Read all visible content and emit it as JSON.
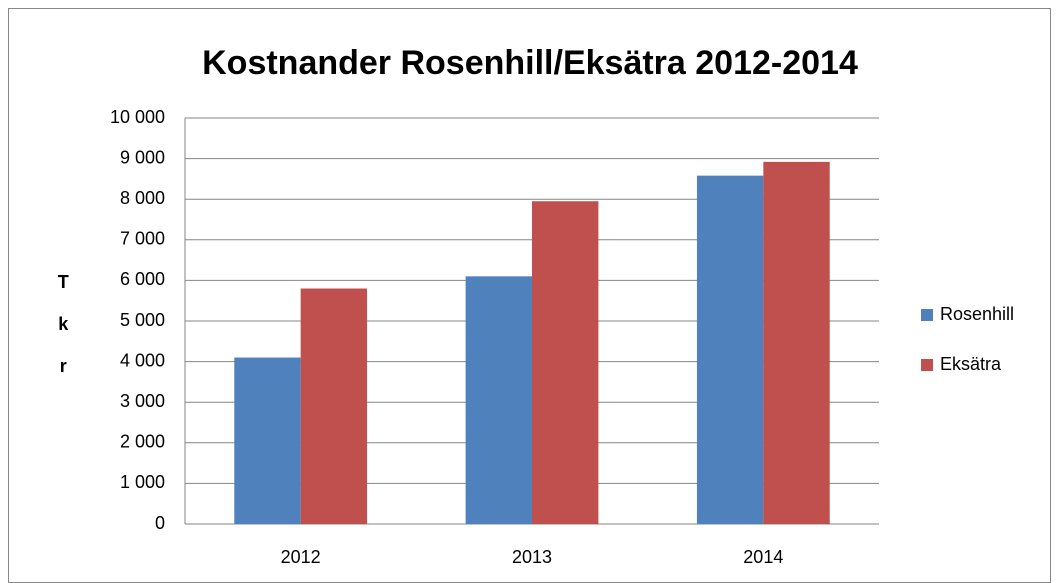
{
  "chart_data": {
    "type": "bar",
    "title": "Kostnander Rosenhill/Eksätra 2012-2014",
    "y_label": "Tkr",
    "categories": [
      "2012",
      "2013",
      "2014"
    ],
    "series": [
      {
        "name": "Rosenhill",
        "color": "#4f81bd",
        "values": [
          4100,
          6100,
          8580
        ]
      },
      {
        "name": "Eksätra",
        "color": "#c0504d",
        "values": [
          5800,
          7950,
          8920
        ]
      }
    ],
    "ylim": [
      0,
      10000
    ],
    "yticks": [
      0,
      {
        "value": 1000,
        "label": "1 000"
      },
      {
        "value": 2000,
        "label": "2 000"
      },
      {
        "value": 3000,
        "label": "3 000"
      },
      {
        "value": 4000,
        "label": "4 000"
      },
      {
        "value": 5000,
        "label": "5 000"
      },
      {
        "value": 6000,
        "label": "6 000"
      },
      {
        "value": 7000,
        "label": "7 000"
      },
      {
        "value": 8000,
        "label": "8 000"
      },
      {
        "value": 9000,
        "label": "9 000"
      },
      {
        "value": 10000,
        "label": "10 000"
      }
    ],
    "grid": true,
    "legend": "right"
  }
}
